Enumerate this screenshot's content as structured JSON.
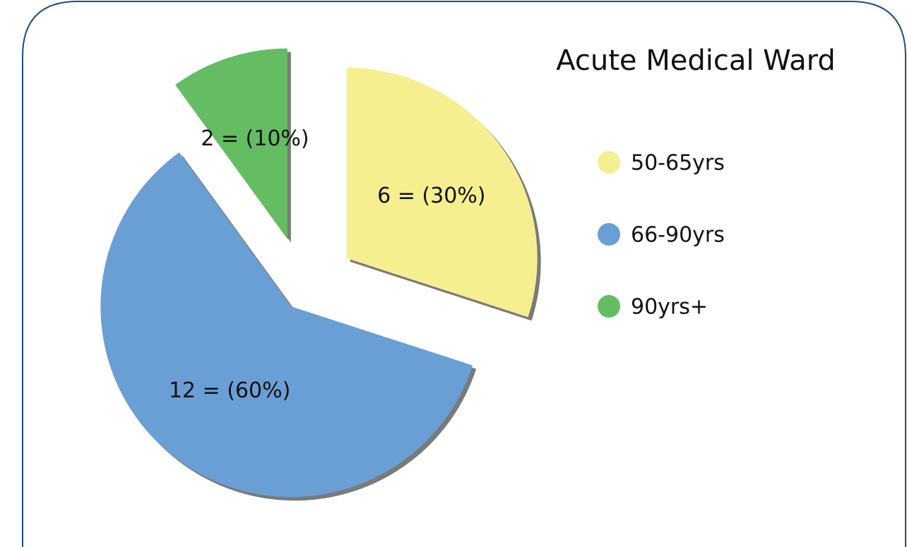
{
  "chart_data": {
    "type": "pie",
    "title": "Acute Medical Ward",
    "categories": [
      "50-65yrs",
      "66-90yrs",
      "90yrs+"
    ],
    "values": [
      6,
      12,
      2
    ],
    "value_labels": [
      "6 = (30%)",
      "12 = (60%)",
      "2 = (10%)"
    ],
    "colors": [
      "#f5ef90",
      "#6a9fd5",
      "#64bd62"
    ],
    "legend": "right"
  }
}
